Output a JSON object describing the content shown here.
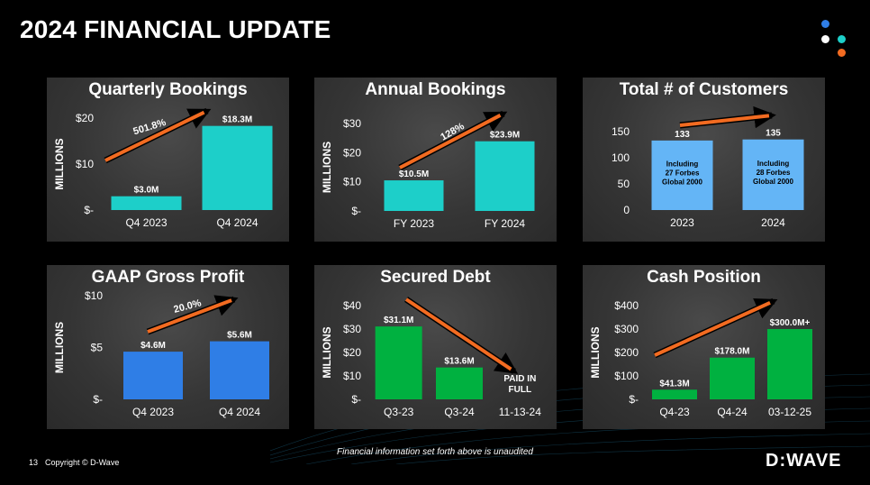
{
  "page": {
    "title": "2024 FINANCIAL UPDATE",
    "page_number": "13",
    "copyright": "Copyright © D-Wave",
    "disclaimer": "Financial information set forth above is unaudited",
    "brand": "D:WAVE",
    "colors": {
      "background": "#000000",
      "arrow": "#f26b21",
      "teal": "#1dcfc9",
      "sky": "#64b5f6",
      "blue": "#2f7ee6",
      "green": "#00b140"
    },
    "logo_dot_colors": [
      "#2f7ee6",
      "#ffffff",
      "#1dcfc9",
      "#f26b21"
    ]
  },
  "chart_data": [
    {
      "type": "bar",
      "title": "Quarterly Bookings",
      "ylabel": "MILLIONS",
      "categories": [
        "Q4 2023",
        "Q4 2024"
      ],
      "values": [
        3.0,
        18.3
      ],
      "value_labels": [
        "$3.0M",
        "$18.3M"
      ],
      "ylim": [
        0,
        20
      ],
      "yticks": [
        0,
        10,
        20
      ],
      "ytick_labels": [
        "$-",
        "$10",
        "$20"
      ],
      "bar_color": "#1dcfc9",
      "arrow": "up",
      "arrow_label": "501.8%",
      "grid": false
    },
    {
      "type": "bar",
      "title": "Annual Bookings",
      "ylabel": "MILLIONS",
      "categories": [
        "FY 2023",
        "FY 2024"
      ],
      "values": [
        10.5,
        23.9
      ],
      "value_labels": [
        "$10.5M",
        "$23.9M"
      ],
      "ylim": [
        0,
        30
      ],
      "yticks": [
        0,
        10,
        20,
        30
      ],
      "ytick_labels": [
        "$-",
        "$10",
        "$20",
        "$30"
      ],
      "bar_color": "#1dcfc9",
      "arrow": "up",
      "arrow_label": "128%",
      "grid": false
    },
    {
      "type": "bar",
      "title": "Total # of Customers",
      "ylabel": "",
      "categories": [
        "2023",
        "2024"
      ],
      "values": [
        133,
        135
      ],
      "value_labels": [
        "133",
        "135"
      ],
      "ylim": [
        0,
        150
      ],
      "yticks": [
        0,
        50,
        100,
        150
      ],
      "ytick_labels": [
        "0",
        "50",
        "100",
        "150"
      ],
      "bar_notes": [
        [
          "Including",
          "27 Forbes",
          "Global 2000"
        ],
        [
          "Including",
          "28 Forbes",
          "Global 2000"
        ]
      ],
      "bar_color": "#64b5f6",
      "arrow": "up",
      "arrow_label": "",
      "grid": false
    },
    {
      "type": "bar",
      "title": "GAAP Gross Profit",
      "ylabel": "MILLIONS",
      "categories": [
        "Q4 2023",
        "Q4 2024"
      ],
      "values": [
        4.6,
        5.6
      ],
      "value_labels": [
        "$4.6M",
        "$5.6M"
      ],
      "ylim": [
        0,
        10
      ],
      "yticks": [
        0,
        5,
        10
      ],
      "ytick_labels": [
        "$-",
        "$5",
        "$10"
      ],
      "bar_color": "#2f7ee6",
      "arrow": "up",
      "arrow_label": "20.0%",
      "grid": false
    },
    {
      "type": "bar",
      "title": "Secured Debt",
      "ylabel": "MILLIONS",
      "categories": [
        "Q3-23",
        "Q3-24",
        "11-13-24"
      ],
      "values": [
        31.1,
        13.6,
        0
      ],
      "value_labels": [
        "$31.1M",
        "$13.6M",
        "PAID IN FULL"
      ],
      "ylim": [
        0,
        40
      ],
      "yticks": [
        0,
        10,
        20,
        30,
        40
      ],
      "ytick_labels": [
        "$-",
        "$10",
        "$20",
        "$30",
        "$40"
      ],
      "bar_color": "#00b140",
      "arrow": "down",
      "arrow_label": "",
      "grid": false
    },
    {
      "type": "bar",
      "title": "Cash Position",
      "ylabel": "MILLIONS",
      "categories": [
        "Q4-23",
        "Q4-24",
        "03-12-25"
      ],
      "values": [
        41.3,
        178.0,
        300.0
      ],
      "value_labels": [
        "$41.3M",
        "$178.0M",
        "$300.0M+"
      ],
      "ylim": [
        0,
        400
      ],
      "yticks": [
        0,
        100,
        200,
        300,
        400
      ],
      "ytick_labels": [
        "$-",
        "$100",
        "$200",
        "$300",
        "$400"
      ],
      "bar_color": "#00b140",
      "arrow": "up",
      "arrow_label": "",
      "grid": false
    }
  ]
}
